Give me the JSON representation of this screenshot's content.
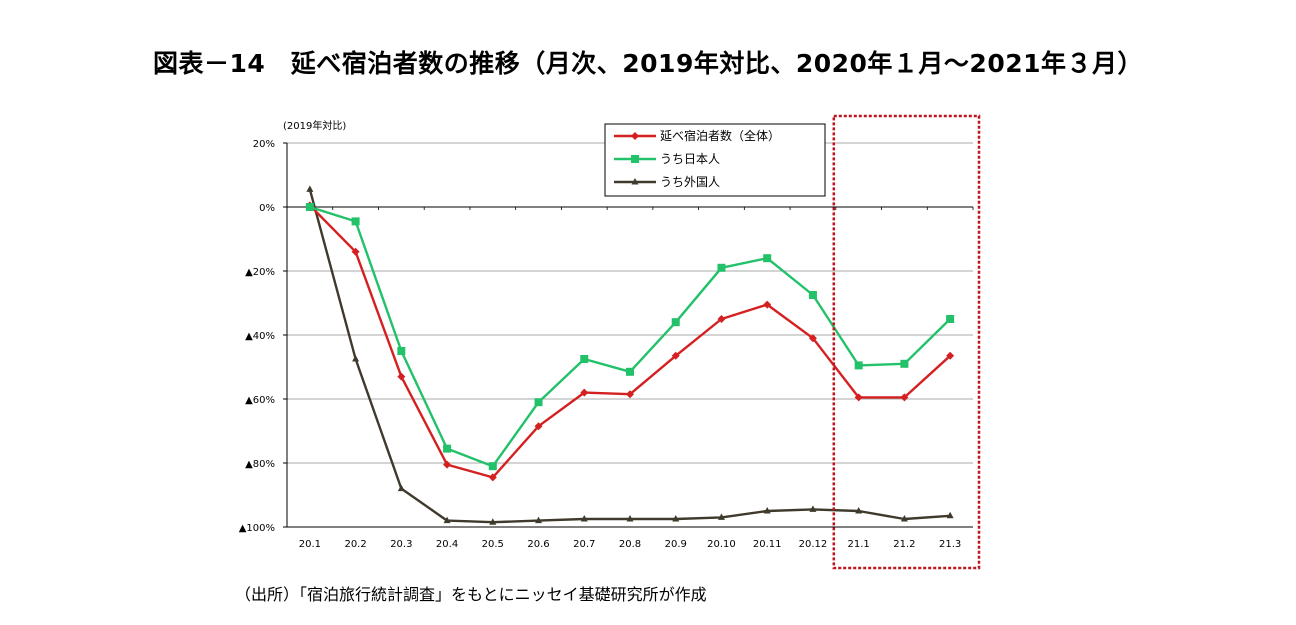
{
  "title": "図表－14　延べ宿泊者数の推移（月次、2019年対比、2020年１月～2021年３月）",
  "source": "（出所）「宿泊旅行統計調査」をもとにニッセイ基礎研究所が作成",
  "colors": {
    "all": "#d42020",
    "japanese": "#22c16a",
    "foreign": "#3f3a2c",
    "highlight": "#c0141c",
    "grid": "#8c8c8c"
  },
  "chart_data": {
    "type": "line",
    "unit_label": "(2019年対比)",
    "x": [
      "20.1",
      "20.2",
      "20.3",
      "20.4",
      "20.5",
      "20.6",
      "20.7",
      "20.8",
      "20.9",
      "20.10",
      "20.11",
      "20.12",
      "21.1",
      "21.2",
      "21.3"
    ],
    "ylim": [
      -100,
      20
    ],
    "yticks": [
      {
        "value": 20,
        "label": "20%"
      },
      {
        "value": 0,
        "label": "0%"
      },
      {
        "value": -20,
        "label": "▲20%"
      },
      {
        "value": -40,
        "label": "▲40%"
      },
      {
        "value": -60,
        "label": "▲60%"
      },
      {
        "value": -80,
        "label": "▲80%"
      },
      {
        "value": -100,
        "label": "▲100%"
      }
    ],
    "grid": true,
    "legend_position": "top-right",
    "series": [
      {
        "name": "延べ宿泊者数（全体）",
        "key": "all",
        "marker": "diamond",
        "values": [
          0.5,
          -14,
          -53,
          -80.5,
          -84.5,
          -68.5,
          -58,
          -58.5,
          -46.5,
          -35,
          -30.5,
          -41,
          -59.5,
          -59.5,
          -46.5
        ]
      },
      {
        "name": "うち日本人",
        "key": "japanese",
        "marker": "square",
        "values": [
          0,
          -4.5,
          -45,
          -75.5,
          -81,
          -61,
          -47.5,
          -51.5,
          -36,
          -19,
          -16,
          -27.5,
          -49.5,
          -49,
          -35
        ]
      },
      {
        "name": "うち外国人",
        "key": "foreign",
        "marker": "triangle",
        "values": [
          5.5,
          -47.5,
          -88,
          -98,
          -98.5,
          -98,
          -97.5,
          -97.5,
          -97.5,
          -97,
          -95,
          -94.5,
          -95,
          -97.5,
          -96.5
        ]
      }
    ],
    "highlight_range": [
      "21.1",
      "21.3"
    ]
  }
}
